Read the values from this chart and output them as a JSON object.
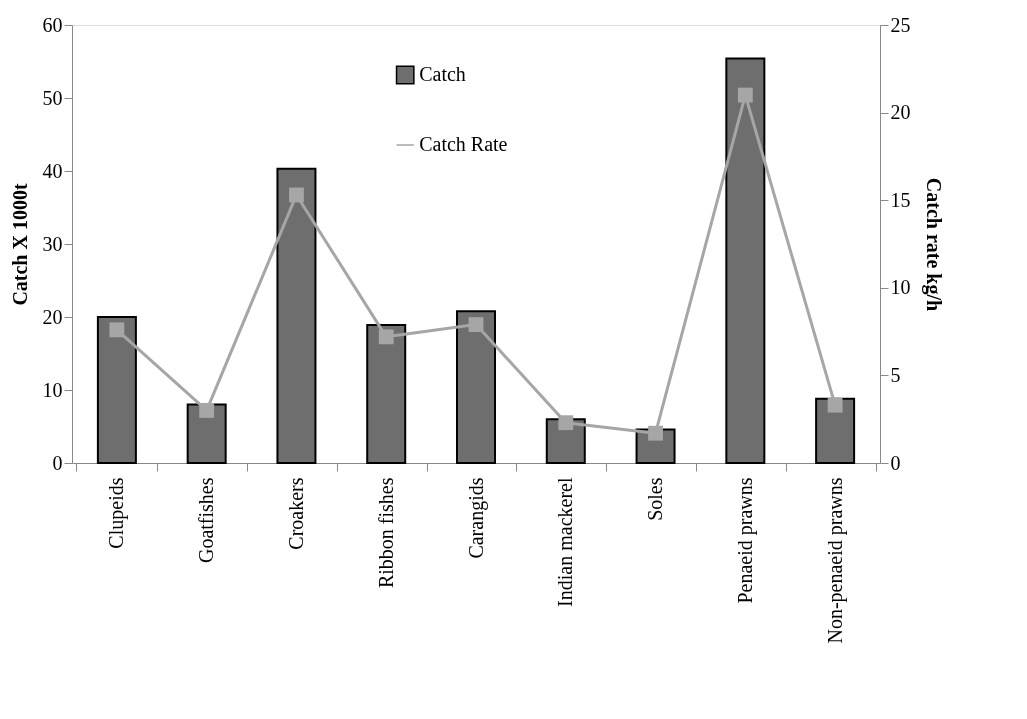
{
  "chart_data": {
    "type": "bar",
    "categories": [
      "Clupeids",
      "Goatfishes",
      "Croakers",
      "Ribbon fishes",
      "Carangids",
      "Indian mackerel",
      "Soles",
      "Penaeid prawns",
      "Non-penaeid prawns"
    ],
    "series": [
      {
        "name": "Catch",
        "color": "#6e6e6e",
        "values": [
          20.0,
          8.0,
          40.3,
          18.9,
          20.8,
          6.0,
          4.6,
          55.4,
          8.8
        ]
      },
      {
        "name": "Catch Rate",
        "type": "line",
        "axis": "y2",
        "color": "#a6a6a6",
        "values": [
          7.6,
          3.0,
          15.3,
          7.2,
          7.9,
          2.3,
          1.7,
          21.0,
          3.3
        ]
      }
    ],
    "ylabel": "Catch X 1000t",
    "y2label": "Catch rate kg/h",
    "ylim": [
      0,
      60
    ],
    "yticks": [
      0,
      10,
      20,
      30,
      40,
      50,
      60
    ],
    "y2lim": [
      0,
      25
    ],
    "y2ticks": [
      0,
      5,
      10,
      15,
      20,
      25
    ],
    "grid": false,
    "legend": "top",
    "marker": "square",
    "line_style": "solid"
  }
}
